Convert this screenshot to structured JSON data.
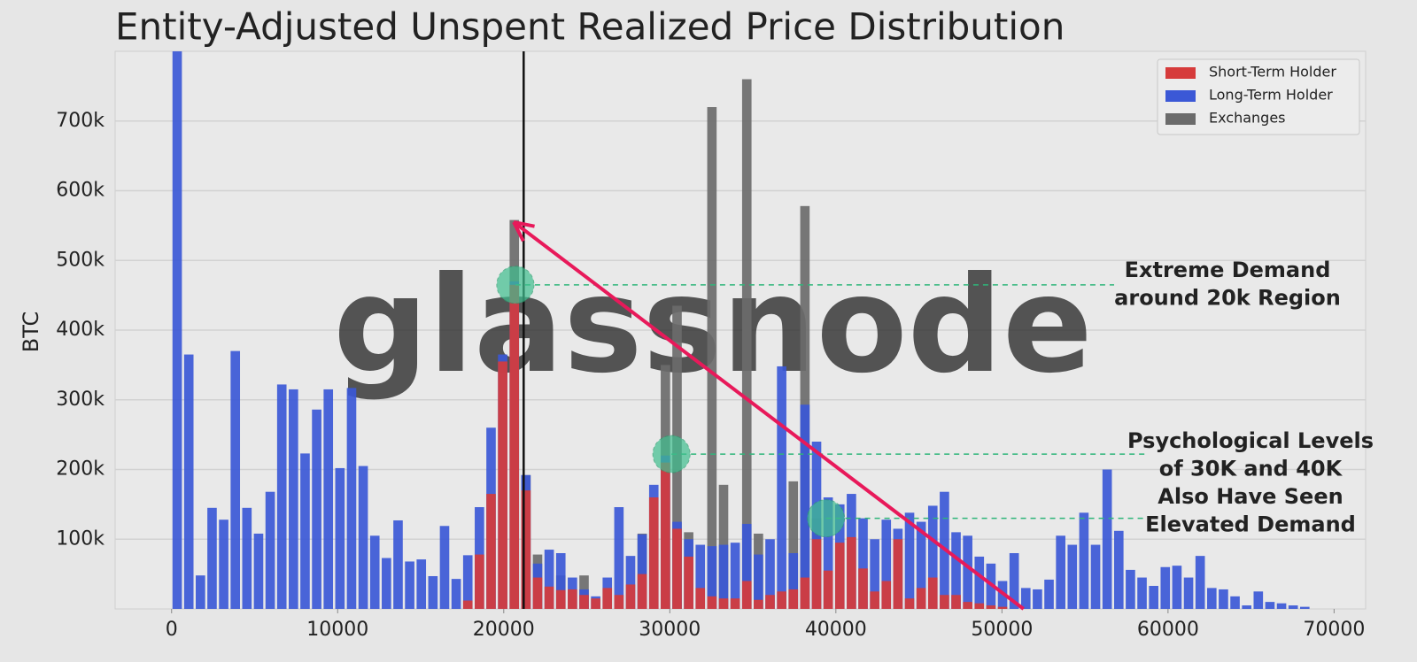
{
  "chart_data": {
    "type": "histogram",
    "title": "Entity-Adjusted Unspent Realized Price Distribution",
    "ylabel": "BTC",
    "watermark": "glassnode",
    "bins": [
      0,
      700,
      1400,
      2100,
      2800,
      3500,
      4200,
      4900,
      5600,
      6300,
      7000,
      7700,
      8400,
      9100,
      9800,
      10500,
      11200,
      11900,
      12600,
      13300,
      14000,
      14700,
      15400,
      16100,
      16800,
      17500,
      18200,
      18900,
      19600,
      20300,
      21000,
      21700,
      22400,
      23100,
      23800,
      24500,
      25200,
      25900,
      26600,
      27300,
      28000,
      28700,
      29400,
      30100,
      30800,
      31500,
      32200,
      32900,
      33600,
      34300,
      35000,
      35700,
      36400,
      37100,
      37800,
      38500,
      39200,
      39900,
      40600,
      41300,
      42000,
      42700,
      43400,
      44100,
      44800,
      45500,
      46200,
      46900,
      47600,
      48300,
      49000,
      49700,
      50400,
      51100,
      51800,
      52500,
      53200,
      53900,
      54600,
      55300,
      56000,
      56700,
      57400,
      58100,
      58800,
      59500,
      60200,
      60900,
      61600,
      62300,
      63000,
      63700,
      64400,
      65100,
      65800,
      66500,
      67200,
      67900,
      68600
    ],
    "series": [
      {
        "name": "Exchanges",
        "color": "#6b6b6b",
        "values": [
          0,
          0,
          0,
          0,
          0,
          0,
          0,
          0,
          0,
          0,
          0,
          0,
          0,
          0,
          0,
          0,
          0,
          0,
          0,
          0,
          0,
          0,
          0,
          0,
          0,
          0,
          0,
          0,
          0,
          558000,
          192000,
          78000,
          0,
          48000,
          0,
          48000,
          0,
          0,
          0,
          0,
          108000,
          0,
          350000,
          435000,
          110000,
          0,
          720000,
          178000,
          0,
          760000,
          108000,
          0,
          0,
          183000,
          578000,
          130000,
          0,
          0,
          0,
          0,
          0,
          0,
          0,
          0,
          0,
          0,
          0,
          0,
          0,
          0,
          0,
          0,
          0,
          0,
          0,
          0,
          0,
          0,
          0,
          0,
          0,
          0,
          0,
          0,
          0,
          0,
          0,
          0,
          0,
          0,
          0,
          0,
          0,
          0,
          0,
          0,
          0,
          0
        ]
      },
      {
        "name": "Long-Term Holder",
        "color": "#3b58d6",
        "values": [
          800000,
          365000,
          48000,
          145000,
          128000,
          370000,
          145000,
          108000,
          168000,
          322000,
          315000,
          223000,
          286000,
          315000,
          202000,
          317000,
          205000,
          105000,
          73000,
          127000,
          68000,
          71000,
          47000,
          119000,
          43000,
          77000,
          146000,
          260000,
          365000,
          470000,
          192000,
          65000,
          85000,
          80000,
          45000,
          28000,
          18000,
          45000,
          146000,
          76000,
          107000,
          178000,
          220000,
          125000,
          100000,
          92000,
          90000,
          92000,
          95000,
          122000,
          78000,
          100000,
          348000,
          80000,
          293000,
          240000,
          160000,
          150000,
          165000,
          130000,
          100000,
          128000,
          115000,
          138000,
          125000,
          148000,
          168000,
          110000,
          105000,
          75000,
          65000,
          40000,
          80000,
          30000,
          28000,
          42000,
          105000,
          92000,
          138000,
          92000,
          200000,
          112000,
          56000,
          45000,
          33000,
          60000,
          62000,
          45000,
          76000,
          30000,
          28000,
          18000,
          5000,
          25000,
          10000,
          8000,
          5000,
          3000
        ]
      },
      {
        "name": "Short-Term Holder",
        "color": "#d63b3b",
        "values": [
          0,
          0,
          0,
          0,
          0,
          0,
          0,
          0,
          0,
          0,
          0,
          0,
          0,
          0,
          0,
          0,
          0,
          0,
          0,
          0,
          0,
          0,
          0,
          0,
          0,
          12000,
          78000,
          165000,
          355000,
          465000,
          170000,
          45000,
          32000,
          27000,
          28000,
          20000,
          15000,
          30000,
          20000,
          35000,
          50000,
          160000,
          210000,
          115000,
          75000,
          30000,
          18000,
          15000,
          15000,
          40000,
          13000,
          20000,
          25000,
          28000,
          45000,
          100000,
          55000,
          95000,
          103000,
          58000,
          25000,
          40000,
          100000,
          15000,
          30000,
          45000,
          20000,
          20000,
          10000,
          8000,
          5000,
          3000,
          0,
          0,
          0,
          0,
          0,
          0,
          0,
          0,
          0,
          0,
          0,
          0,
          0,
          0,
          0,
          0,
          0,
          0,
          0,
          0,
          0,
          0,
          0,
          0,
          0,
          0
        ]
      }
    ],
    "legend_order": [
      2,
      1,
      0
    ],
    "legend": "upper right",
    "xlim": [
      -3400,
      71900
    ],
    "xticks": [
      0,
      10000,
      20000,
      30000,
      40000,
      50000,
      60000,
      70000
    ],
    "ylim": [
      0,
      800000
    ],
    "yticks": [
      {
        "value": 100000,
        "label": "100k"
      },
      {
        "value": 200000,
        "label": "200k"
      },
      {
        "value": 300000,
        "label": "300k"
      },
      {
        "value": 400000,
        "label": "400k"
      },
      {
        "value": 500000,
        "label": "500k"
      },
      {
        "value": 600000,
        "label": "600k"
      },
      {
        "value": 700000,
        "label": "700k"
      }
    ],
    "grid": true,
    "vline": 21200,
    "highlights": [
      {
        "x": 20700,
        "y": 465000
      },
      {
        "x": 30100,
        "y": 222000
      },
      {
        "x": 39400,
        "y": 130000
      }
    ],
    "arrow": {
      "from": [
        51300,
        0
      ],
      "to": [
        20600,
        555000
      ]
    },
    "annotations": [
      {
        "lines": [
          "Extreme Demand",
          "around 20k Region"
        ]
      },
      {
        "lines": [
          "Psychological Levels",
          "of 30K and 40K",
          "Also Have Seen",
          "Elevated Demand"
        ]
      }
    ]
  }
}
